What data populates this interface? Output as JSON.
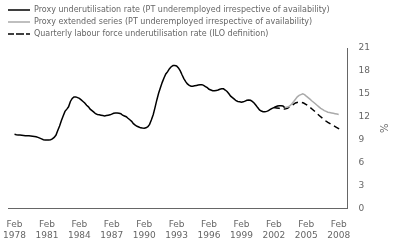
{
  "chart_data": {
    "type": "line",
    "y_label": "%",
    "ylim": [
      0,
      21
    ],
    "yticks": [
      0,
      3,
      6,
      9,
      12,
      15,
      18,
      21
    ],
    "xlim": [
      1977.5,
      2008.9
    ],
    "xticks": [
      {
        "value": 1978.08,
        "label": "Feb\n1978"
      },
      {
        "value": 1981.08,
        "label": "Feb\n1981"
      },
      {
        "value": 1984.08,
        "label": "Feb\n1984"
      },
      {
        "value": 1987.08,
        "label": "Feb\n1987"
      },
      {
        "value": 1990.08,
        "label": "Feb\n1990"
      },
      {
        "value": 1993.08,
        "label": "Feb\n1993"
      },
      {
        "value": 1996.08,
        "label": "Feb\n1996"
      },
      {
        "value": 1999.08,
        "label": "Feb\n1999"
      },
      {
        "value": 2002.08,
        "label": "Feb\n2002"
      },
      {
        "value": 2005.08,
        "label": "Feb\n2005"
      },
      {
        "value": 2008.08,
        "label": "Feb\n2008"
      }
    ],
    "grid": false,
    "legend": "top",
    "series": [
      {
        "name": "Proxy underutilisation rate (PT underemployed irrespective of availability)",
        "color": "#000000",
        "line_style": "solid",
        "x": [
          1978.08,
          1978.25,
          1978.42,
          1978.58,
          1978.75,
          1978.92,
          1979.08,
          1979.25,
          1979.42,
          1979.58,
          1979.75,
          1979.92,
          1980.08,
          1980.25,
          1980.42,
          1980.58,
          1980.75,
          1980.92,
          1981.08,
          1981.25,
          1981.42,
          1981.58,
          1981.75,
          1981.92,
          1982.08,
          1982.25,
          1982.42,
          1982.58,
          1982.75,
          1982.92,
          1983.08,
          1983.25,
          1983.42,
          1983.58,
          1983.75,
          1983.92,
          1984.08,
          1984.25,
          1984.42,
          1984.58,
          1984.75,
          1984.92,
          1985.08,
          1985.25,
          1985.42,
          1985.58,
          1985.75,
          1985.92,
          1986.08,
          1986.25,
          1986.42,
          1986.58,
          1986.75,
          1986.92,
          1987.08,
          1987.25,
          1987.42,
          1987.58,
          1987.75,
          1987.92,
          1988.08,
          1988.25,
          1988.42,
          1988.58,
          1988.75,
          1988.92,
          1989.08,
          1989.25,
          1989.42,
          1989.58,
          1989.75,
          1989.92,
          1990.08,
          1990.25,
          1990.42,
          1990.58,
          1990.75,
          1990.92,
          1991.08,
          1991.25,
          1991.42,
          1991.58,
          1991.75,
          1991.92,
          1992.08,
          1992.25,
          1992.42,
          1992.58,
          1992.75,
          1992.92,
          1993.08,
          1993.25,
          1993.42,
          1993.58,
          1993.75,
          1993.92,
          1994.08,
          1994.25,
          1994.42,
          1994.58,
          1994.75,
          1994.92,
          1995.08,
          1995.25,
          1995.42,
          1995.58,
          1995.75,
          1995.92,
          1996.08,
          1996.25,
          1996.42,
          1996.58,
          1996.75,
          1996.92,
          1997.08,
          1997.25,
          1997.42,
          1997.58,
          1997.75,
          1997.92,
          1998.08,
          1998.25,
          1998.42,
          1998.58,
          1998.75,
          1998.92,
          1999.08,
          1999.25,
          1999.42,
          1999.58,
          1999.75,
          1999.92,
          2000.08,
          2000.25,
          2000.42,
          2000.58,
          2000.75,
          2000.92,
          2001.08,
          2001.25,
          2001.42,
          2001.58,
          2001.75,
          2001.92,
          2002.08,
          2002.25,
          2002.42,
          2002.58,
          2002.75,
          2002.92,
          2003.08
        ],
        "values": [
          9.7,
          9.65,
          9.62,
          9.6,
          9.58,
          9.55,
          9.52,
          9.5,
          9.5,
          9.48,
          9.45,
          9.42,
          9.38,
          9.3,
          9.2,
          9.1,
          9.0,
          8.96,
          8.95,
          8.97,
          9.0,
          9.1,
          9.3,
          9.6,
          10.2,
          10.8,
          11.5,
          12.1,
          12.7,
          13.0,
          13.3,
          14.0,
          14.4,
          14.6,
          14.6,
          14.5,
          14.4,
          14.2,
          14.0,
          13.8,
          13.5,
          13.3,
          13.0,
          12.8,
          12.6,
          12.4,
          12.3,
          12.25,
          12.2,
          12.15,
          12.1,
          12.15,
          12.2,
          12.25,
          12.35,
          12.45,
          12.5,
          12.5,
          12.45,
          12.4,
          12.2,
          12.1,
          12.0,
          11.8,
          11.6,
          11.4,
          11.1,
          10.9,
          10.75,
          10.65,
          10.55,
          10.52,
          10.5,
          10.55,
          10.7,
          11.0,
          11.6,
          12.3,
          13.2,
          14.2,
          15.1,
          15.8,
          16.5,
          17.1,
          17.6,
          17.9,
          18.3,
          18.55,
          18.7,
          18.7,
          18.65,
          18.4,
          18.0,
          17.5,
          17.0,
          16.6,
          16.3,
          16.1,
          16.0,
          16.0,
          16.05,
          16.1,
          16.15,
          16.2,
          16.2,
          16.1,
          15.95,
          15.8,
          15.6,
          15.5,
          15.4,
          15.4,
          15.45,
          15.5,
          15.6,
          15.65,
          15.65,
          15.5,
          15.3,
          15.0,
          14.7,
          14.5,
          14.3,
          14.1,
          14.0,
          13.95,
          13.9,
          13.95,
          14.05,
          14.15,
          14.2,
          14.15,
          14.0,
          13.8,
          13.5,
          13.2,
          12.9,
          12.75,
          12.65,
          12.65,
          12.7,
          12.8,
          12.95,
          13.1,
          13.2,
          13.3,
          13.4,
          13.45,
          13.45,
          13.4,
          13.2
        ]
      },
      {
        "name": "Proxy extended series (PT underemployed irrespective of availability)",
        "color": "#aaaaaa",
        "line_style": "solid",
        "x": [
          2003.08,
          2003.25,
          2003.42,
          2003.58,
          2003.75,
          2003.92,
          2004.08,
          2004.25,
          2004.42,
          2004.58,
          2004.75,
          2004.92,
          2005.08,
          2005.25,
          2005.42,
          2005.58,
          2005.75,
          2005.92,
          2006.08,
          2006.25,
          2006.42,
          2006.58,
          2006.75,
          2006.92,
          2007.08,
          2007.25,
          2007.42,
          2007.58,
          2007.75,
          2007.92,
          2008.08
        ],
        "values": [
          13.2,
          13.25,
          13.3,
          13.45,
          13.7,
          14.0,
          14.3,
          14.6,
          14.8,
          14.9,
          15.0,
          14.9,
          14.7,
          14.5,
          14.3,
          14.1,
          13.9,
          13.7,
          13.5,
          13.3,
          13.1,
          12.95,
          12.8,
          12.7,
          12.6,
          12.55,
          12.5,
          12.45,
          12.4,
          12.35,
          12.3
        ]
      },
      {
        "name": "Quarterly labour force underutilisation rate (ILO definition)",
        "color": "#000000",
        "line_style": "dashed",
        "x": [
          2002.08,
          2002.33,
          2002.58,
          2002.83,
          2003.08,
          2003.33,
          2003.58,
          2003.83,
          2004.08,
          2004.33,
          2004.58,
          2004.83,
          2005.08,
          2005.33,
          2005.58,
          2005.83,
          2006.08,
          2006.33,
          2006.58,
          2006.83,
          2007.08,
          2007.33,
          2007.58,
          2007.83,
          2008.08,
          2008.42
        ],
        "values": [
          13.2,
          13.15,
          13.1,
          13.05,
          13.0,
          13.1,
          13.3,
          13.55,
          13.8,
          13.9,
          13.9,
          13.8,
          13.6,
          13.35,
          13.05,
          12.75,
          12.4,
          12.1,
          11.8,
          11.5,
          11.25,
          11.05,
          10.85,
          10.65,
          10.45,
          10.2
        ]
      }
    ]
  }
}
